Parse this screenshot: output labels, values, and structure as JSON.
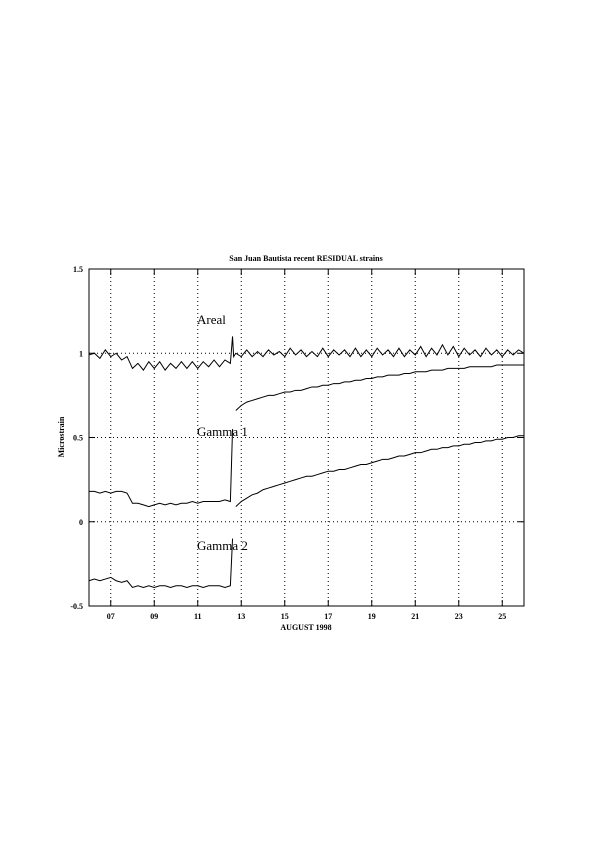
{
  "chart_data": {
    "type": "line",
    "title": "San Juan Bautista recent RESIDUAL strains",
    "x_label": "AUGUST 1998",
    "y_label": "Microstrain",
    "xlim": [
      6,
      26
    ],
    "xticks": [
      {
        "value": 7,
        "label": "07"
      },
      {
        "value": 9,
        "label": "09"
      },
      {
        "value": 11,
        "label": "11"
      },
      {
        "value": 13,
        "label": "13"
      },
      {
        "value": 15,
        "label": "15"
      },
      {
        "value": 17,
        "label": "17"
      },
      {
        "value": 19,
        "label": "19"
      },
      {
        "value": 21,
        "label": "21"
      },
      {
        "value": 23,
        "label": "23"
      },
      {
        "value": 25,
        "label": "25"
      }
    ],
    "ylim": [
      -0.5,
      1.5
    ],
    "yticks": [
      -0.5,
      0,
      0.5,
      1,
      1.5
    ],
    "grid": true,
    "x": [
      6,
      6.25,
      6.5,
      6.75,
      7,
      7.25,
      7.5,
      7.75,
      8,
      8.25,
      8.5,
      8.75,
      9,
      9.25,
      9.5,
      9.75,
      10,
      10.25,
      10.5,
      10.75,
      11,
      11.25,
      11.5,
      11.75,
      12,
      12.25,
      12.5,
      12.6,
      12.65,
      12.75,
      13,
      13.25,
      13.5,
      13.75,
      14,
      14.25,
      14.5,
      14.75,
      15,
      15.25,
      15.5,
      15.75,
      16,
      16.25,
      16.5,
      16.75,
      17,
      17.25,
      17.5,
      17.75,
      18,
      18.25,
      18.5,
      18.75,
      19,
      19.25,
      19.5,
      19.75,
      20,
      20.25,
      20.5,
      20.75,
      21,
      21.25,
      21.5,
      21.75,
      22,
      22.25,
      22.5,
      22.75,
      23,
      23.25,
      23.5,
      23.75,
      24,
      24.25,
      24.5,
      24.75,
      25,
      25.25,
      25.5,
      25.75,
      26
    ],
    "series": [
      {
        "name": "Areal",
        "color": "#000000",
        "values": [
          0.99,
          1.0,
          0.97,
          1.02,
          0.98,
          1.0,
          0.96,
          0.98,
          0.91,
          0.94,
          0.9,
          0.95,
          0.91,
          0.95,
          0.9,
          0.94,
          0.91,
          0.95,
          0.91,
          0.95,
          0.91,
          0.95,
          0.92,
          0.96,
          0.92,
          0.96,
          0.94,
          1.1,
          0.98,
          1.0,
          0.98,
          1.02,
          0.98,
          1.01,
          0.98,
          1.02,
          0.99,
          1.01,
          0.98,
          1.03,
          0.99,
          1.02,
          0.98,
          1.01,
          0.98,
          1.03,
          0.98,
          1.02,
          0.99,
          1.02,
          0.98,
          1.03,
          0.98,
          1.02,
          0.98,
          1.03,
          0.99,
          1.02,
          0.98,
          1.03,
          0.98,
          1.02,
          0.99,
          1.04,
          0.98,
          1.03,
          0.99,
          1.05,
          0.99,
          1.04,
          0.98,
          1.03,
          0.99,
          1.02,
          0.98,
          1.03,
          0.99,
          1.02,
          0.98,
          1.02,
          0.99,
          1.02,
          1.0
        ]
      },
      {
        "name": "Gamma 1",
        "color": "#000000",
        "values": [
          0.18,
          0.18,
          0.17,
          0.18,
          0.17,
          0.18,
          0.18,
          0.17,
          0.11,
          0.11,
          0.1,
          0.09,
          0.1,
          0.11,
          0.1,
          0.11,
          0.1,
          0.11,
          0.11,
          0.12,
          0.11,
          0.12,
          0.12,
          0.12,
          0.12,
          0.13,
          0.12,
          0.55,
          null,
          0.66,
          0.69,
          0.71,
          0.72,
          0.73,
          0.74,
          0.75,
          0.75,
          0.76,
          0.77,
          0.77,
          0.78,
          0.78,
          0.79,
          0.8,
          0.8,
          0.81,
          0.81,
          0.82,
          0.82,
          0.83,
          0.83,
          0.84,
          0.84,
          0.85,
          0.85,
          0.86,
          0.86,
          0.87,
          0.87,
          0.87,
          0.88,
          0.88,
          0.89,
          0.89,
          0.89,
          0.9,
          0.9,
          0.9,
          0.91,
          0.91,
          0.91,
          0.91,
          0.92,
          0.92,
          0.92,
          0.92,
          0.92,
          0.93,
          0.93,
          0.93,
          0.93,
          0.93,
          0.93
        ]
      },
      {
        "name": "Gamma 2",
        "color": "#000000",
        "values": [
          -0.35,
          -0.34,
          -0.35,
          -0.34,
          -0.33,
          -0.35,
          -0.36,
          -0.35,
          -0.39,
          -0.38,
          -0.39,
          -0.38,
          -0.39,
          -0.38,
          -0.38,
          -0.39,
          -0.38,
          -0.38,
          -0.39,
          -0.38,
          -0.38,
          -0.39,
          -0.38,
          -0.38,
          -0.38,
          -0.39,
          -0.38,
          -0.1,
          null,
          0.09,
          0.12,
          0.14,
          0.16,
          0.17,
          0.19,
          0.2,
          0.21,
          0.22,
          0.23,
          0.24,
          0.25,
          0.26,
          0.27,
          0.27,
          0.28,
          0.29,
          0.3,
          0.3,
          0.31,
          0.31,
          0.32,
          0.33,
          0.34,
          0.34,
          0.35,
          0.36,
          0.37,
          0.37,
          0.38,
          0.39,
          0.39,
          0.4,
          0.41,
          0.41,
          0.42,
          0.43,
          0.43,
          0.44,
          0.44,
          0.45,
          0.45,
          0.46,
          0.46,
          0.47,
          0.47,
          0.48,
          0.48,
          0.49,
          0.49,
          0.5,
          0.5,
          0.51,
          0.51
        ]
      }
    ]
  }
}
